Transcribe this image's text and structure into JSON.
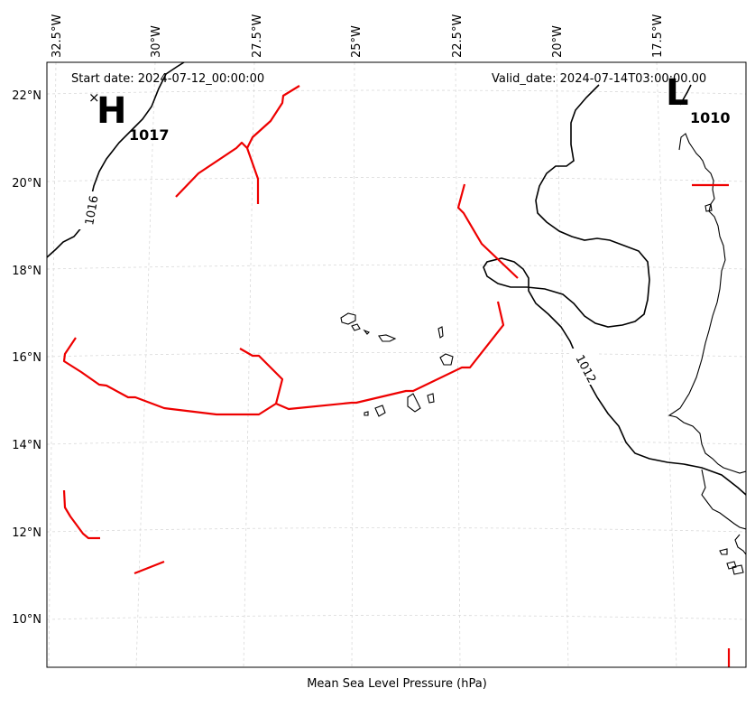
{
  "header": {
    "start_date": "Start date: 2024-07-12_00:00:00",
    "valid_date": "Valid_date: 2024-07-14T03:00:00.00"
  },
  "axes": {
    "lon_labels": [
      "32.5°W",
      "30°W",
      "27.5°W",
      "25°W",
      "22.5°W",
      "20°W",
      "17.5°W"
    ],
    "lat_labels": [
      "22°N",
      "20°N",
      "18°N",
      "16°N",
      "14°N",
      "12°N",
      "10°N"
    ],
    "xlabel": "Mean Sea Level Pressure (hPa)",
    "grid": true,
    "grid_color": "#d9d9d9"
  },
  "pressure_centers": [
    {
      "type": "H",
      "value": "1017"
    },
    {
      "type": "L",
      "value": "1010"
    }
  ],
  "isobars": [
    {
      "value": "1016"
    },
    {
      "value": "1012"
    }
  ],
  "colors": {
    "isobar": "#000000",
    "trough": "#ee0000",
    "coastline": "#000000"
  }
}
